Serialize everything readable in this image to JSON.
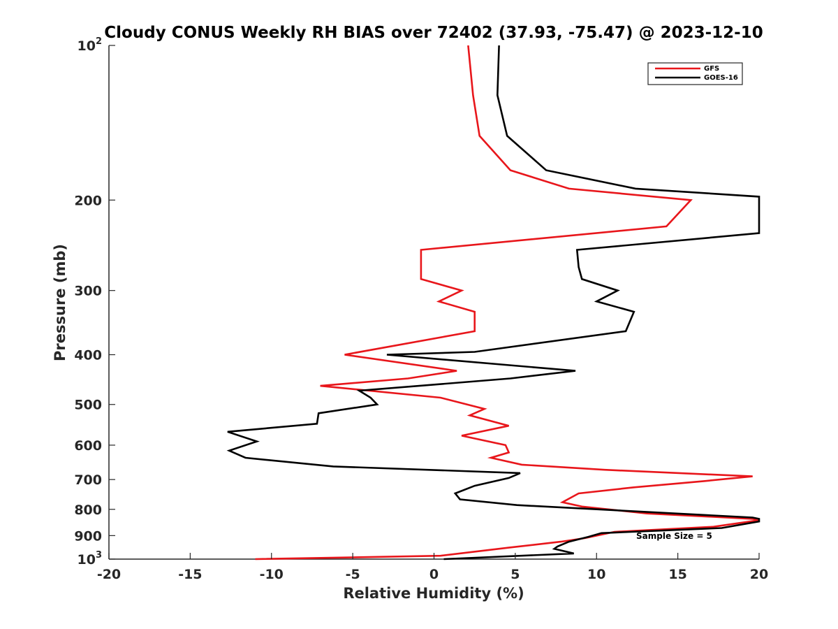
{
  "chart_data": {
    "type": "line",
    "title": "Cloudy CONUS Weekly RH BIAS over 72402 (37.93, -75.47) @ 2023-12-10",
    "xlabel": "Relative Humidity (%)",
    "ylabel": "Pressure (mb)",
    "xlim": [
      -20,
      20
    ],
    "ylim": [
      100,
      1000
    ],
    "y_scale": "log",
    "y_reversed": true,
    "x_ticks": [
      -20,
      -15,
      -10,
      -5,
      0,
      5,
      10,
      15,
      20
    ],
    "x_tick_labels": [
      "-20",
      "-15",
      "-10",
      "-5",
      "0",
      "5",
      "10",
      "15",
      "20"
    ],
    "y_ticks": [
      {
        "value": 100,
        "base": "10",
        "exp": "2"
      },
      {
        "value": 200,
        "base": "200",
        "exp": ""
      },
      {
        "value": 300,
        "base": "300",
        "exp": ""
      },
      {
        "value": 400,
        "base": "400",
        "exp": ""
      },
      {
        "value": 500,
        "base": "500",
        "exp": ""
      },
      {
        "value": 600,
        "base": "600",
        "exp": ""
      },
      {
        "value": 700,
        "base": "700",
        "exp": ""
      },
      {
        "value": 800,
        "base": "800",
        "exp": ""
      },
      {
        "value": 900,
        "base": "900",
        "exp": ""
      },
      {
        "value": 1000,
        "base": "10",
        "exp": "3"
      }
    ],
    "grid": false,
    "legend_position": "top-right",
    "annotation": "Sample Size = 5",
    "series": [
      {
        "name": "GFS",
        "color": "#e8161b",
        "points": [
          [
            2.1,
            100
          ],
          [
            2.4,
            125
          ],
          [
            2.8,
            150
          ],
          [
            4.7,
            175
          ],
          [
            8.3,
            190
          ],
          [
            15.8,
            200
          ],
          [
            14.3,
            225
          ],
          [
            -0.8,
            250
          ],
          [
            -0.8,
            270
          ],
          [
            -0.8,
            285
          ],
          [
            1.7,
            300
          ],
          [
            0.3,
            315
          ],
          [
            2.5,
            330
          ],
          [
            2.5,
            360
          ],
          [
            -5.5,
            400
          ],
          [
            1.4,
            430
          ],
          [
            -1.6,
            445
          ],
          [
            -7.0,
            460
          ],
          [
            0.4,
            485
          ],
          [
            3.1,
            510
          ],
          [
            2.2,
            525
          ],
          [
            4.6,
            550
          ],
          [
            1.7,
            575
          ],
          [
            4.4,
            600
          ],
          [
            4.6,
            620
          ],
          [
            3.5,
            635
          ],
          [
            5.4,
            655
          ],
          [
            10.5,
            670
          ],
          [
            19.6,
            690
          ],
          [
            16.6,
            705
          ],
          [
            12.3,
            725
          ],
          [
            8.9,
            745
          ],
          [
            7.9,
            775
          ],
          [
            9.1,
            790
          ],
          [
            13.1,
            815
          ],
          [
            19.6,
            835
          ],
          [
            20.0,
            840
          ],
          [
            17.2,
            865
          ],
          [
            11.1,
            885
          ],
          [
            9.3,
            910
          ],
          [
            7.8,
            925
          ],
          [
            4.6,
            950
          ],
          [
            0.4,
            985
          ],
          [
            -11.0,
            1000
          ]
        ]
      },
      {
        "name": "GOES-16",
        "color": "#000000",
        "points": [
          [
            4.0,
            100
          ],
          [
            3.9,
            125
          ],
          [
            4.5,
            150
          ],
          [
            6.9,
            175
          ],
          [
            12.4,
            190
          ],
          [
            20.0,
            197
          ],
          [
            20.0,
            232
          ],
          [
            8.8,
            250
          ],
          [
            8.9,
            270
          ],
          [
            9.1,
            285
          ],
          [
            11.3,
            300
          ],
          [
            10.0,
            315
          ],
          [
            12.3,
            330
          ],
          [
            11.8,
            360
          ],
          [
            2.5,
            395
          ],
          [
            -2.9,
            400
          ],
          [
            8.7,
            430
          ],
          [
            4.7,
            445
          ],
          [
            -4.6,
            470
          ],
          [
            -3.9,
            485
          ],
          [
            -3.5,
            500
          ],
          [
            -7.1,
            520
          ],
          [
            -7.2,
            545
          ],
          [
            -12.7,
            565
          ],
          [
            -10.9,
            590
          ],
          [
            -12.6,
            615
          ],
          [
            -11.6,
            635
          ],
          [
            -6.2,
            660
          ],
          [
            5.3,
            680
          ],
          [
            4.6,
            695
          ],
          [
            2.5,
            720
          ],
          [
            1.3,
            745
          ],
          [
            1.6,
            765
          ],
          [
            5.1,
            785
          ],
          [
            19.6,
            830
          ],
          [
            20.0,
            835
          ],
          [
            20.0,
            845
          ],
          [
            17.7,
            870
          ],
          [
            10.3,
            890
          ],
          [
            9.5,
            905
          ],
          [
            8.3,
            925
          ],
          [
            7.6,
            945
          ],
          [
            7.4,
            955
          ],
          [
            8.6,
            975
          ],
          [
            0.6,
            1000
          ]
        ]
      }
    ]
  }
}
